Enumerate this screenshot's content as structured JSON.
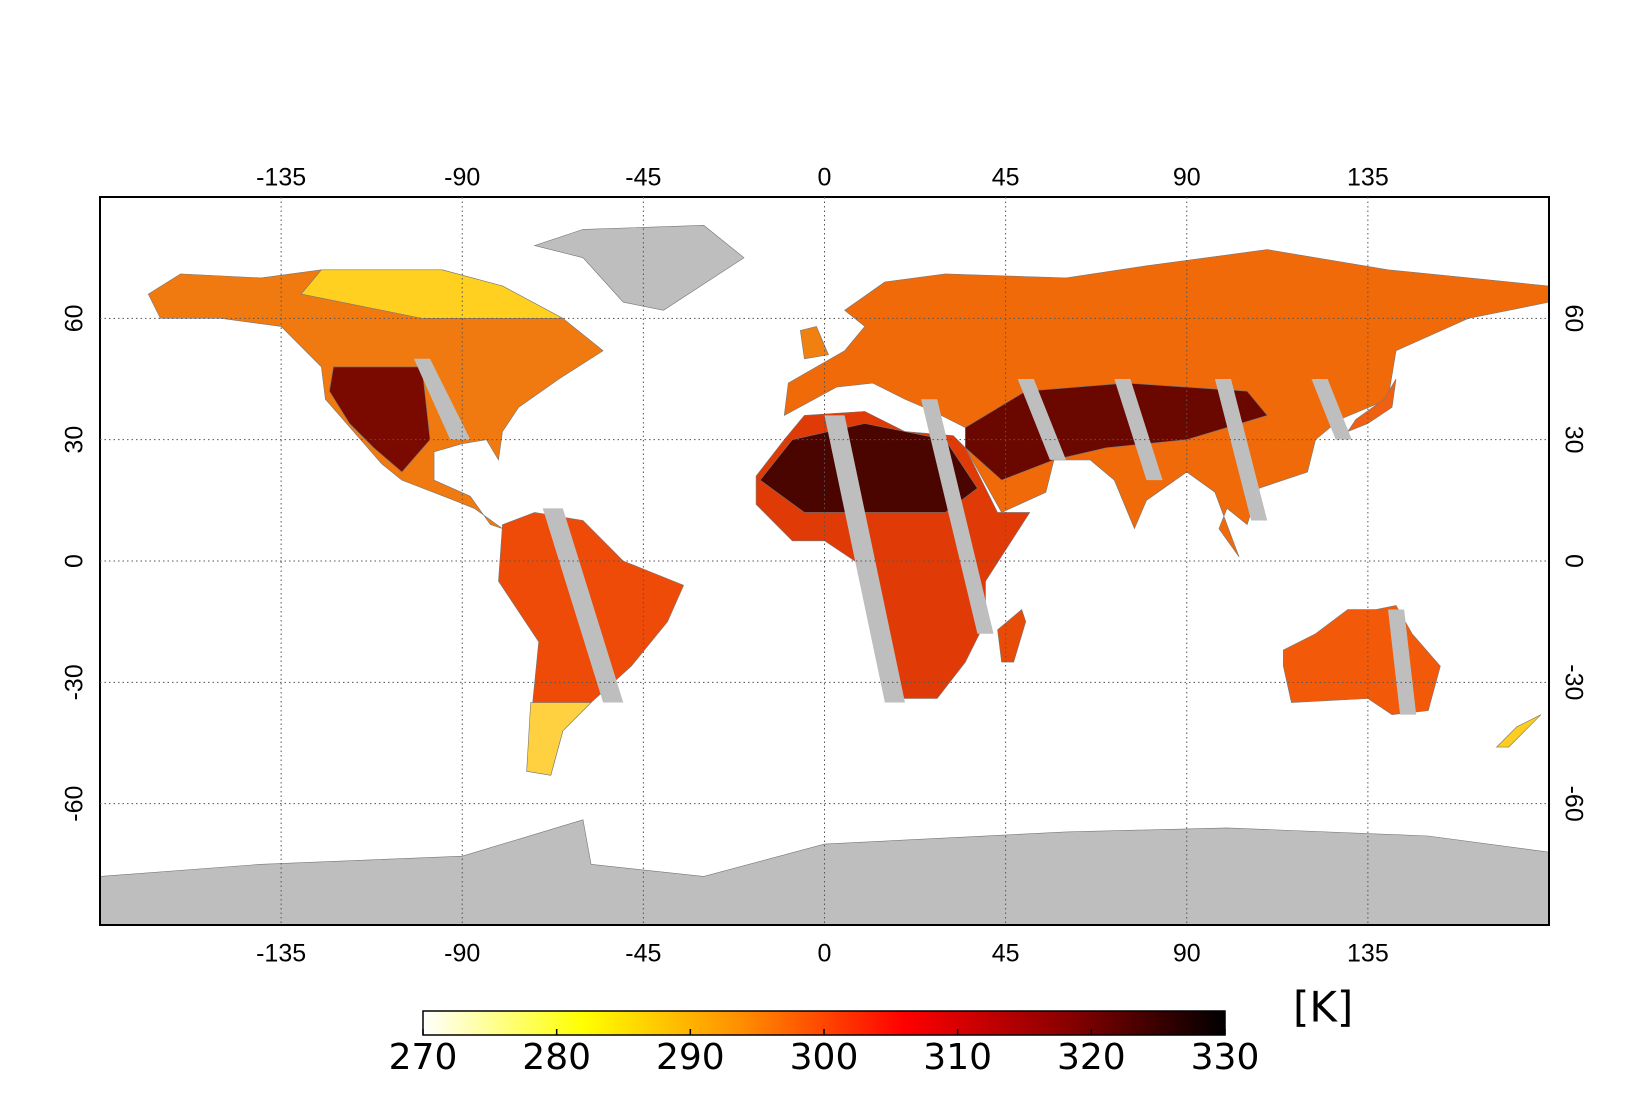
{
  "map": {
    "xlim": [
      -180,
      180
    ],
    "ylim": [
      -90,
      90
    ],
    "xticks": [
      -135,
      -90,
      -45,
      0,
      45,
      90,
      135
    ],
    "yticks": [
      60,
      30,
      0,
      -30,
      -60
    ],
    "grid": true
  },
  "colorbar": {
    "label": "[K]",
    "range": [
      270,
      330
    ],
    "ticks": [
      270,
      280,
      290,
      300,
      310,
      320,
      330
    ],
    "colors": [
      "#ffffff",
      "#ffff00",
      "#ff8c00",
      "#ff0000",
      "#8b0000",
      "#000000"
    ]
  }
}
